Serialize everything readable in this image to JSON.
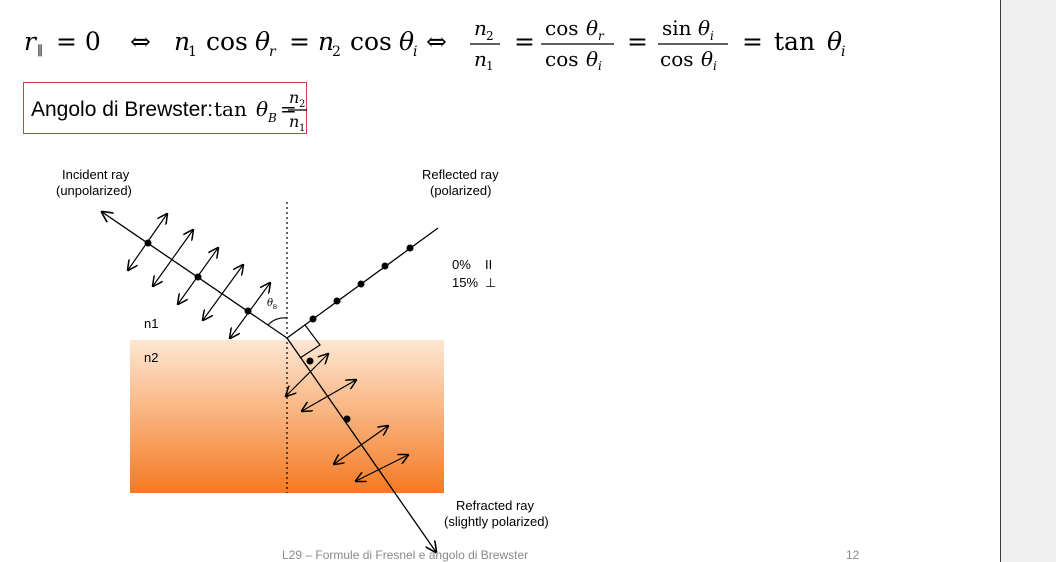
{
  "formula": {
    "r_symbol": "r",
    "r_subscript": "∥",
    "eq_zero": "= 0",
    "iff1": "⇔",
    "n1": "n",
    "sub1": "1",
    "cos": "cos",
    "theta": "θ",
    "sub_r": "r",
    "equals": "=",
    "n2": "n",
    "sub2": "2",
    "sub_i": "i",
    "iff2": "⇔",
    "sin": "sin",
    "tan": "tan"
  },
  "brewster": {
    "label": "Angolo di Brewster:",
    "tan": "tan",
    "theta": "θ",
    "sub_B": "B",
    "equals": "=",
    "n": "n",
    "sub2": "2",
    "sub1": "1"
  },
  "figure": {
    "incident_label_line1": "Incident ray",
    "incident_label_line2": "(unpolarized)",
    "reflected_label_line1": "Reflected ray",
    "reflected_label_line2": "(polarized)",
    "refracted_label_line1": "Refracted ray",
    "refracted_label_line2": "(slightly polarized)",
    "pct_parallel": "0%",
    "sym_parallel": "II",
    "pct_perp": "15%",
    "sym_perp": "⊥",
    "medium1": "n1",
    "medium2": "n2",
    "angle_theta": "θ",
    "angle_sub": "B",
    "colors": {
      "gradient_top": "#fde7d3",
      "gradient_bottom": "#f47a23",
      "box_border": "#d63a3a"
    }
  },
  "footer": {
    "title": "L29 – Formule di Fresnel e angolo di Brewster",
    "page": "12"
  }
}
